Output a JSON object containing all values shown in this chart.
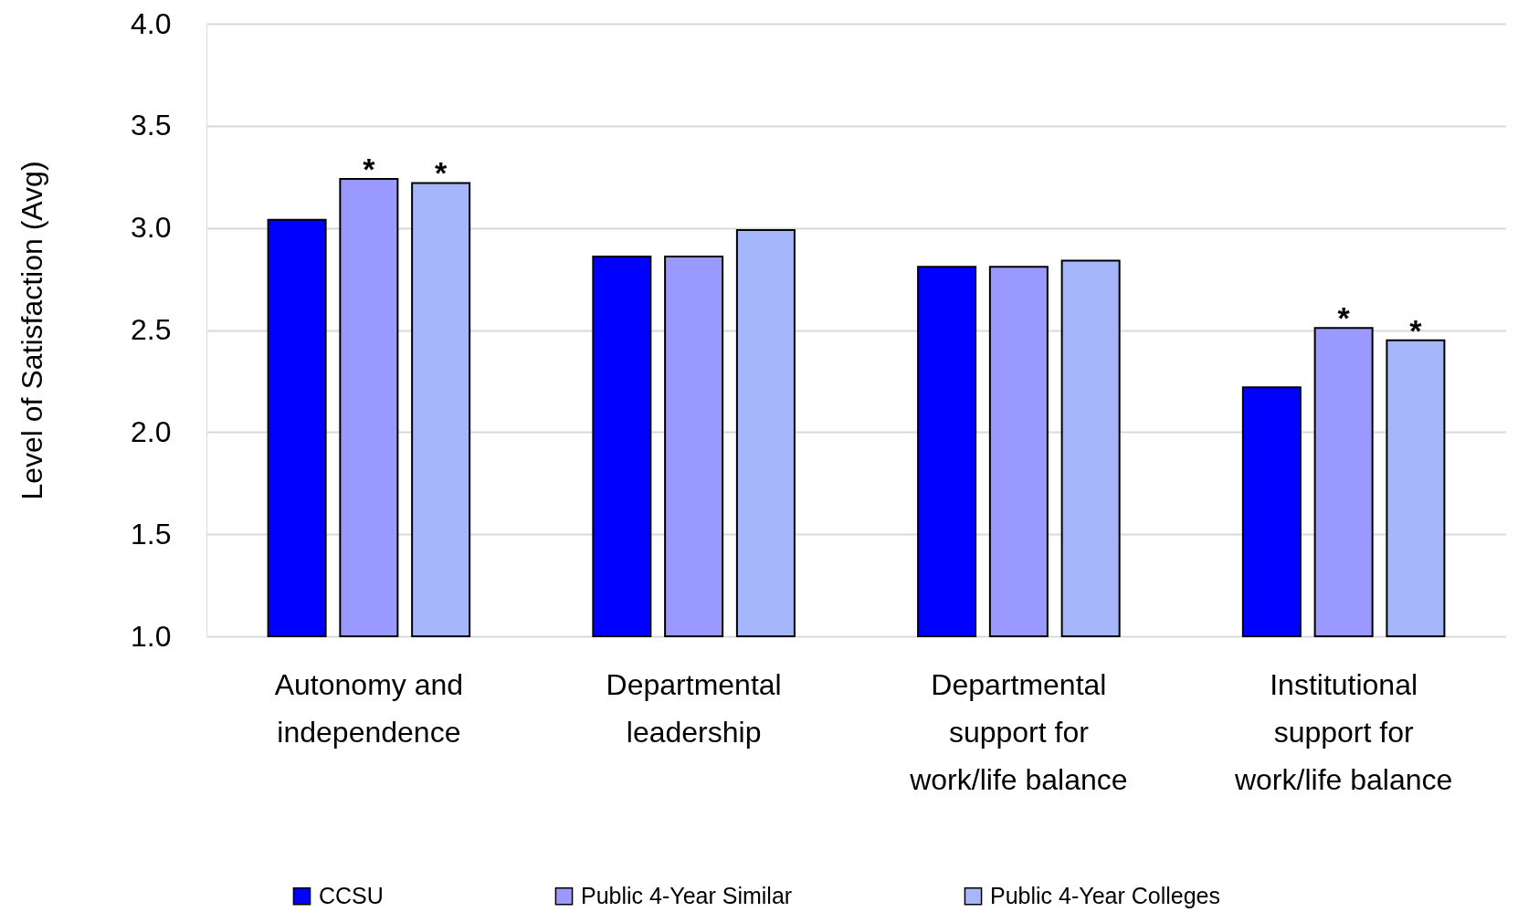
{
  "chart_data": {
    "type": "bar",
    "ylabel": "Level of Satisfaction (Avg)",
    "categories": [
      "Autonomy and independence",
      "Departmental leadership",
      "Departmental support for work/life balance",
      "Institutional support for work/life balance"
    ],
    "series": [
      {
        "name": "CCSU",
        "color": "#0000ff",
        "values": [
          3.04,
          2.86,
          2.81,
          2.22
        ]
      },
      {
        "name": "Public 4-Year Similar",
        "color": "#9999ff",
        "values": [
          3.24,
          2.86,
          2.81,
          2.51
        ],
        "value_labels": [
          "*",
          null,
          null,
          "*"
        ]
      },
      {
        "name": "Public 4-Year Colleges",
        "color": "#a6b6fb",
        "values": [
          3.22,
          2.99,
          2.84,
          2.45
        ],
        "value_labels": [
          "*",
          null,
          null,
          "*"
        ]
      }
    ],
    "ylim": [
      1.0,
      4.0
    ],
    "yticks": [
      {
        "value": 1.0,
        "label": "1.0"
      },
      {
        "value": 1.5,
        "label": "1.5"
      },
      {
        "value": 2.0,
        "label": "2.0"
      },
      {
        "value": 2.5,
        "label": "2.5"
      },
      {
        "value": 3.0,
        "label": "3.0"
      },
      {
        "value": 3.5,
        "label": "3.5"
      },
      {
        "value": 4.0,
        "label": "4.0"
      }
    ],
    "grid": "y",
    "legend": "bottom"
  }
}
